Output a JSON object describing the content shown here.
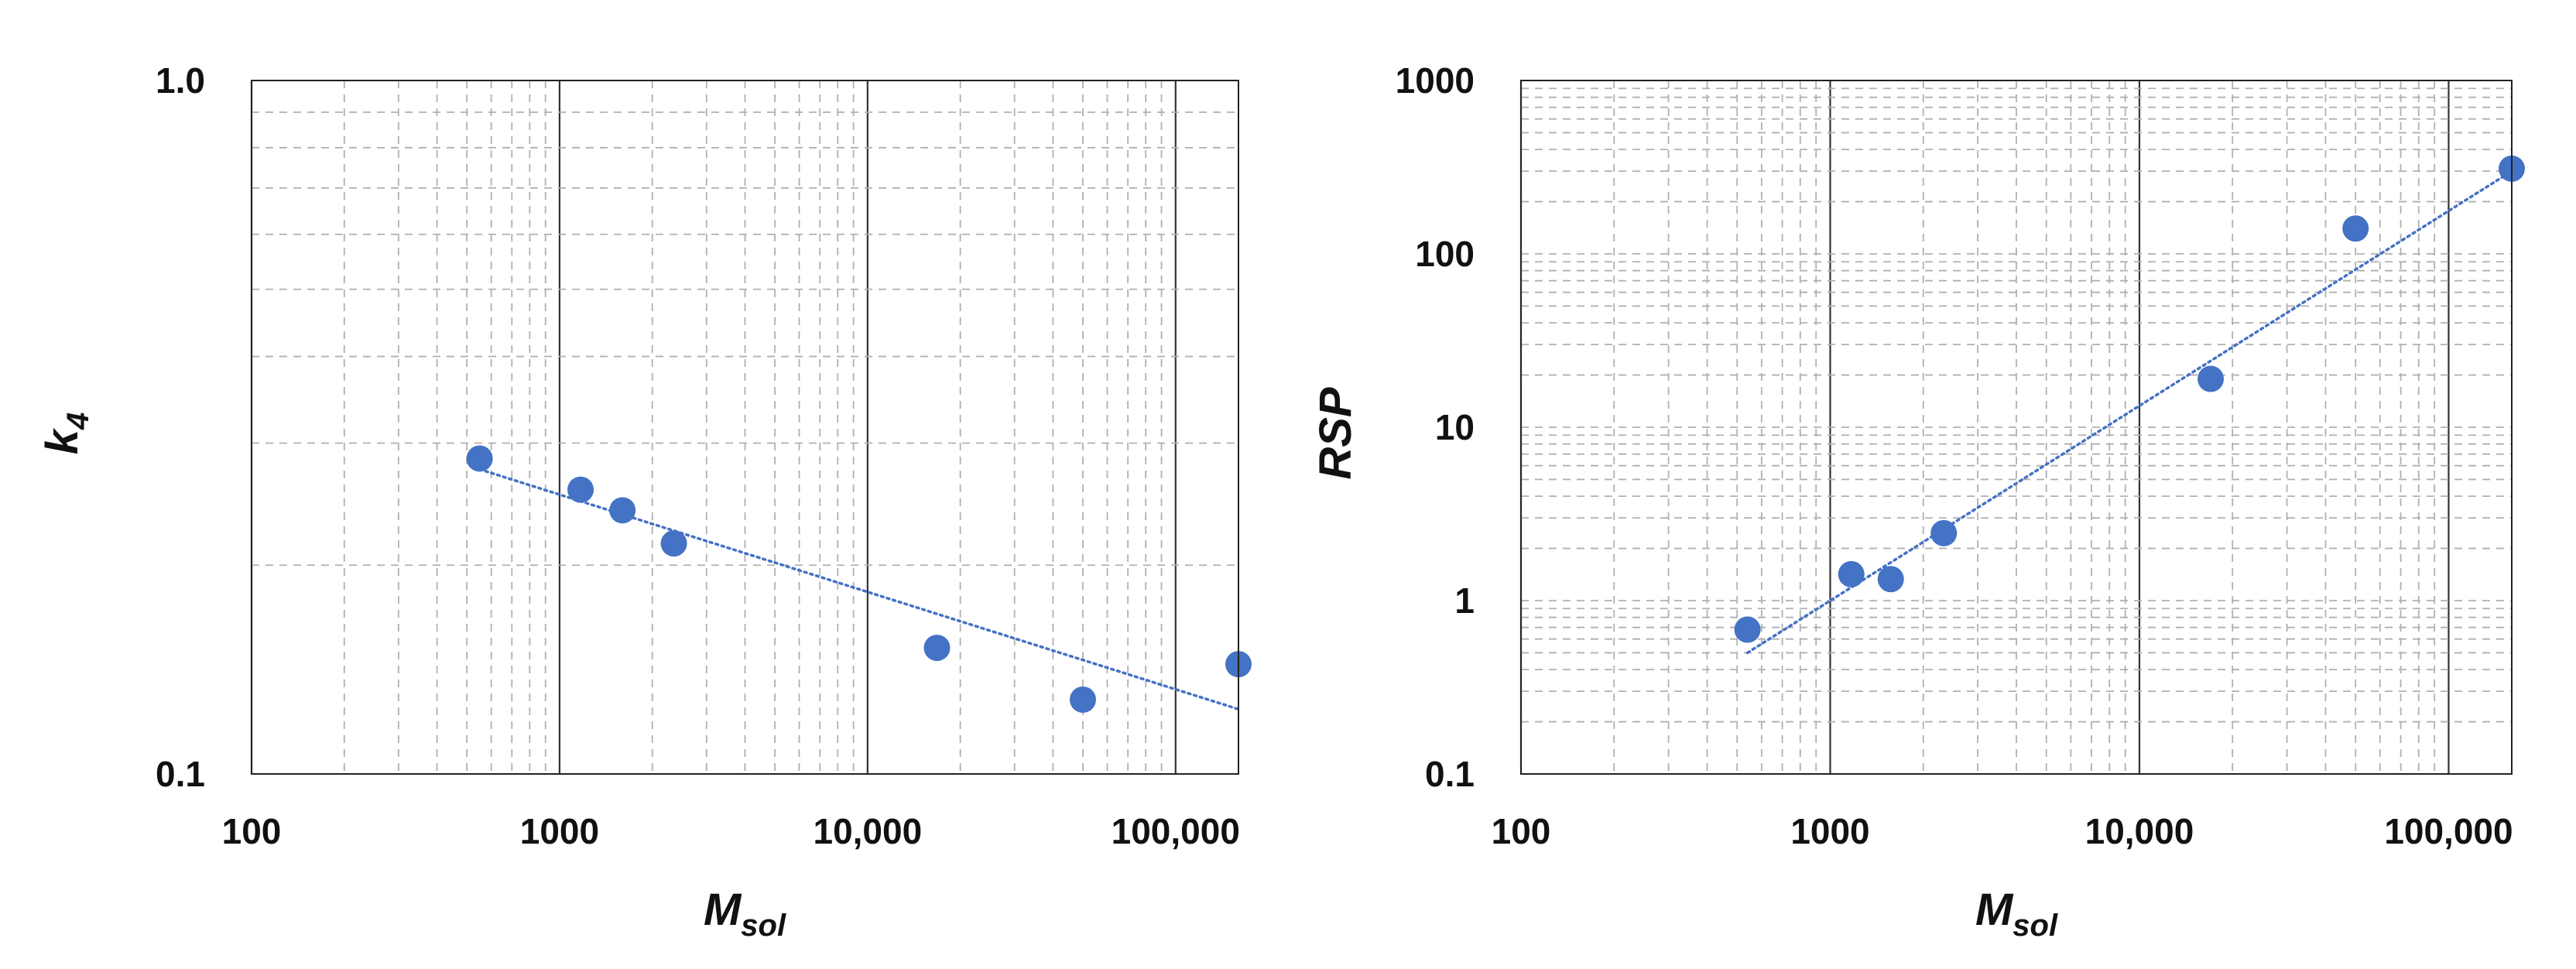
{
  "chart_data": [
    {
      "type": "scatter",
      "xlabel": "M",
      "xlabel_sub": "sol",
      "ylabel": "k",
      "ylabel_sub": "4",
      "xscale": "log",
      "yscale": "log",
      "xlim": [
        100,
        160000
      ],
      "ylim": [
        0.1,
        1.0
      ],
      "xticks": [
        100,
        1000,
        10000,
        100000
      ],
      "xtick_labels": [
        "100",
        "1000",
        "10,000",
        "100,000"
      ],
      "yticks": [
        0.1,
        1.0
      ],
      "ytick_labels": [
        "0.1",
        "1.0"
      ],
      "grid": true,
      "trendline": "power, dotted",
      "marker_color": "#4472c4",
      "series": [
        {
          "x": [
            550,
            1170,
            1600,
            2350,
            16800,
            50000,
            160000
          ],
          "y": [
            0.285,
            0.257,
            0.24,
            0.215,
            0.152,
            0.128,
            0.144
          ]
        }
      ],
      "trend": {
        "x": [
          550,
          160000
        ],
        "y": [
          0.275,
          0.124
        ]
      }
    },
    {
      "type": "scatter",
      "xlabel": "M",
      "xlabel_sub": "sol",
      "ylabel": "RSP",
      "ylabel_sub": "",
      "xscale": "log",
      "yscale": "log",
      "xlim": [
        100,
        160000
      ],
      "ylim": [
        0.1,
        1000
      ],
      "xticks": [
        100,
        1000,
        10000,
        100000
      ],
      "xtick_labels": [
        "100",
        "1000",
        "10,000",
        "100,000"
      ],
      "yticks": [
        0.1,
        1,
        10,
        100,
        1000
      ],
      "ytick_labels": [
        "0.1",
        "1",
        "10",
        "100",
        "1000"
      ],
      "grid": true,
      "trendline": "power, dotted",
      "marker_color": "#4472c4",
      "series": [
        {
          "x": [
            540,
            1170,
            1570,
            2330,
            17000,
            50000,
            160000
          ],
          "y": [
            0.68,
            1.42,
            1.33,
            2.45,
            19,
            140,
            310
          ]
        }
      ],
      "trend": {
        "x": [
          540,
          160000
        ],
        "y": [
          0.5,
          300
        ]
      }
    }
  ]
}
